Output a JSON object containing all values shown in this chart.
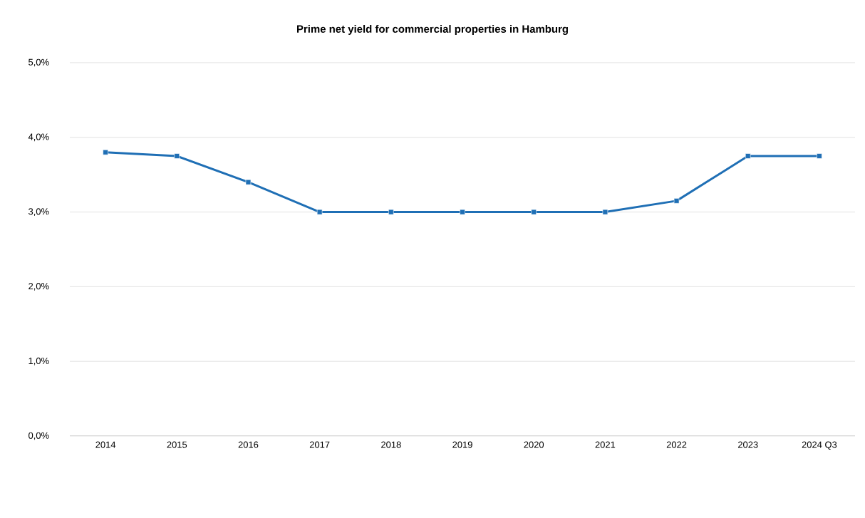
{
  "chart_data": {
    "type": "line",
    "title": "Prime net yield for commercial properties in Hamburg",
    "categories": [
      "2014",
      "2015",
      "2016",
      "2017",
      "2018",
      "2019",
      "2020",
      "2021",
      "2022",
      "2023",
      "2024 Q3"
    ],
    "series": [
      {
        "color": "#1f6fb5",
        "values": [
          3.8,
          3.75,
          3.4,
          3.0,
          3.0,
          3.0,
          3.0,
          3.0,
          3.15,
          3.75,
          3.75
        ]
      }
    ],
    "ylim": [
      0,
      5
    ],
    "yticks": [
      {
        "value": 0,
        "label": "0,0%"
      },
      {
        "value": 1,
        "label": "1,0%"
      },
      {
        "value": 2,
        "label": "2,0%"
      },
      {
        "value": 3,
        "label": "3,0%"
      },
      {
        "value": 4,
        "label": "4,0%"
      },
      {
        "value": 5,
        "label": "5,0%"
      }
    ],
    "grid": "y",
    "marker": "square",
    "line_style": "solid"
  }
}
